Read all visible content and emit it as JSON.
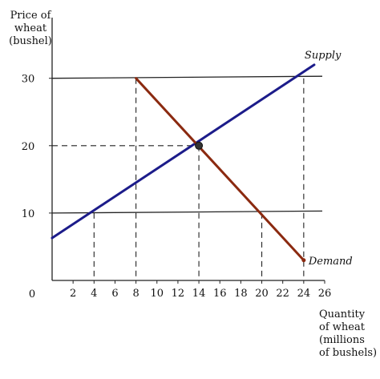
{
  "chart_data": {
    "type": "line",
    "ylabel": [
      "Price of",
      "wheat",
      "(bushel)"
    ],
    "xlabel": [
      "Quantity",
      "of wheat",
      "(millions",
      "of bushels)"
    ],
    "origin_label": "0",
    "x_ticks": [
      2,
      4,
      6,
      8,
      10,
      12,
      14,
      16,
      18,
      20,
      22,
      24,
      26
    ],
    "y_ticks": [
      10,
      20,
      30
    ],
    "xlim": [
      0,
      26
    ],
    "ylim": [
      0,
      39
    ],
    "series": [
      {
        "name": "Supply",
        "color": "#1c1c8a",
        "points": [
          [
            0,
            6.3
          ],
          [
            25,
            32
          ]
        ]
      },
      {
        "name": "Demand",
        "color": "#8b2a10",
        "points": [
          [
            8,
            30
          ],
          [
            24,
            3
          ]
        ]
      }
    ],
    "price_lines": [
      {
        "y": 30,
        "y_end": 30.3
      },
      {
        "y": 10,
        "y_end": 10.3
      }
    ],
    "guides": [
      {
        "x": 8,
        "y": 30
      },
      {
        "x": 24,
        "y": 30
      },
      {
        "x": 4,
        "y": 10
      },
      {
        "x": 20,
        "y": 10
      },
      {
        "x": 14,
        "y": 20
      }
    ],
    "equilibrium": {
      "x": 14,
      "y": 20,
      "color": "#333333"
    }
  }
}
